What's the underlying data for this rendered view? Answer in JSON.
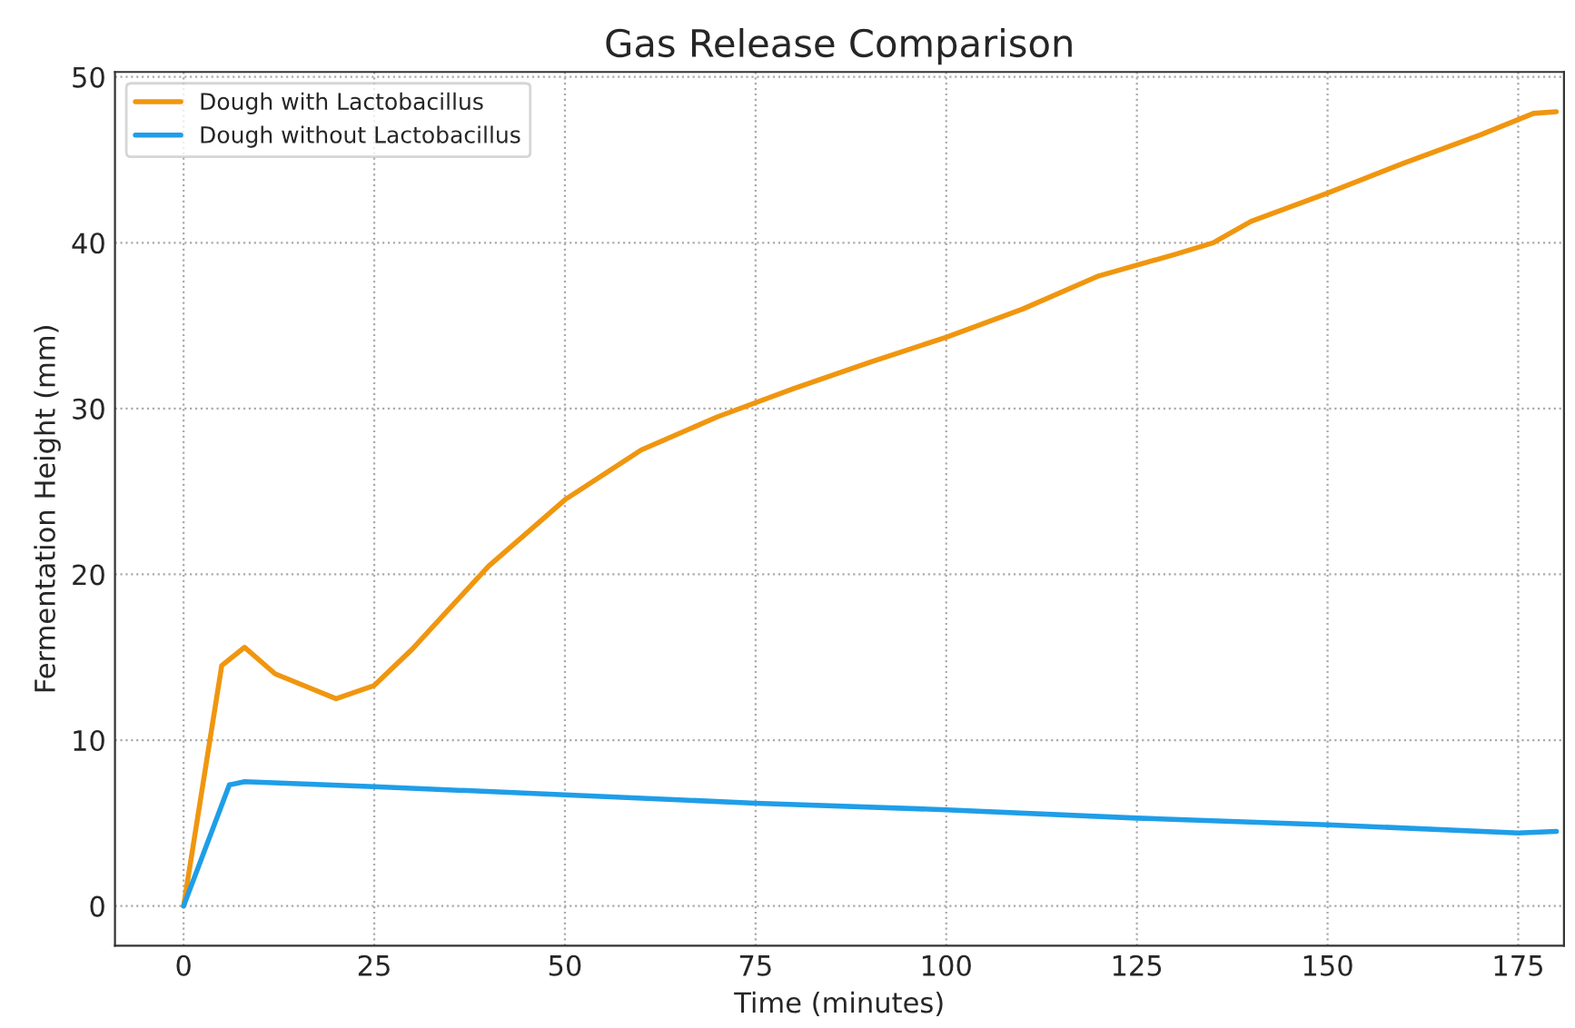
{
  "chart_data": {
    "type": "line",
    "title": "Gas Release Comparison",
    "xlabel": "Time (minutes)",
    "ylabel": "Fermentation Height (mm)",
    "xlim": [
      -9,
      181
    ],
    "ylim": [
      -2.4,
      50.3
    ],
    "xticks": [
      0,
      25,
      50,
      75,
      100,
      125,
      150,
      175
    ],
    "yticks": [
      0,
      10,
      20,
      30,
      40,
      50
    ],
    "grid": true,
    "legend": "top left",
    "line_style": "solid",
    "marker": "none",
    "series": [
      {
        "name": "Dough with Lactobacillus",
        "color": "#f0960f",
        "x": [
          0,
          5,
          8,
          12,
          20,
          25,
          30,
          35,
          40,
          50,
          60,
          70,
          80,
          90,
          100,
          110,
          120,
          130,
          135,
          140,
          150,
          160,
          170,
          177,
          180
        ],
        "values": [
          0,
          14.5,
          15.6,
          14,
          12.5,
          13.3,
          15.5,
          18,
          20.5,
          24.5,
          27.5,
          29.5,
          31.2,
          32.8,
          34.3,
          36,
          38,
          39.3,
          40,
          41.3,
          43,
          44.8,
          46.5,
          47.8,
          47.9
        ]
      },
      {
        "name": "Dough without Lactobacillus",
        "color": "#1f9ee8",
        "x": [
          0,
          6,
          8,
          25,
          50,
          75,
          100,
          125,
          150,
          175,
          180
        ],
        "values": [
          0,
          7.3,
          7.5,
          7.2,
          6.7,
          6.2,
          5.8,
          5.3,
          4.9,
          4.4,
          4.5
        ]
      }
    ]
  }
}
